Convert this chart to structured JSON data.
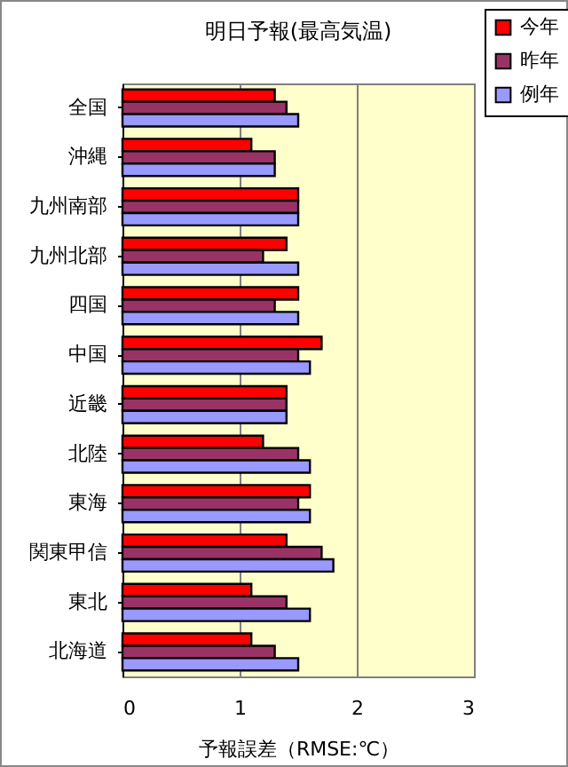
{
  "chart_data": {
    "type": "bar",
    "orientation": "horizontal",
    "title": "明日予報(最高気温)",
    "xlabel": "予報誤差（RMSE:℃）",
    "categories": [
      "全国",
      "沖縄",
      "九州南部",
      "九州北部",
      "四国",
      "中国",
      "近畿",
      "北陸",
      "東海",
      "関東甲信",
      "東北",
      "北海道"
    ],
    "series": [
      {
        "name": "今年",
        "color": "#ff0000",
        "values": [
          1.3,
          1.1,
          1.5,
          1.4,
          1.5,
          1.7,
          1.4,
          1.2,
          1.6,
          1.4,
          1.1,
          1.1
        ]
      },
      {
        "name": "昨年",
        "color": "#993366",
        "values": [
          1.4,
          1.3,
          1.5,
          1.2,
          1.3,
          1.5,
          1.4,
          1.5,
          1.5,
          1.7,
          1.4,
          1.3
        ]
      },
      {
        "name": "例年",
        "color": "#9999ff",
        "values": [
          1.5,
          1.3,
          1.5,
          1.5,
          1.5,
          1.6,
          1.4,
          1.6,
          1.6,
          1.8,
          1.6,
          1.5
        ]
      }
    ],
    "xlim": [
      0,
      3
    ],
    "xticks": [
      0,
      1,
      2,
      3
    ],
    "grid": "x",
    "legend": "top right"
  }
}
